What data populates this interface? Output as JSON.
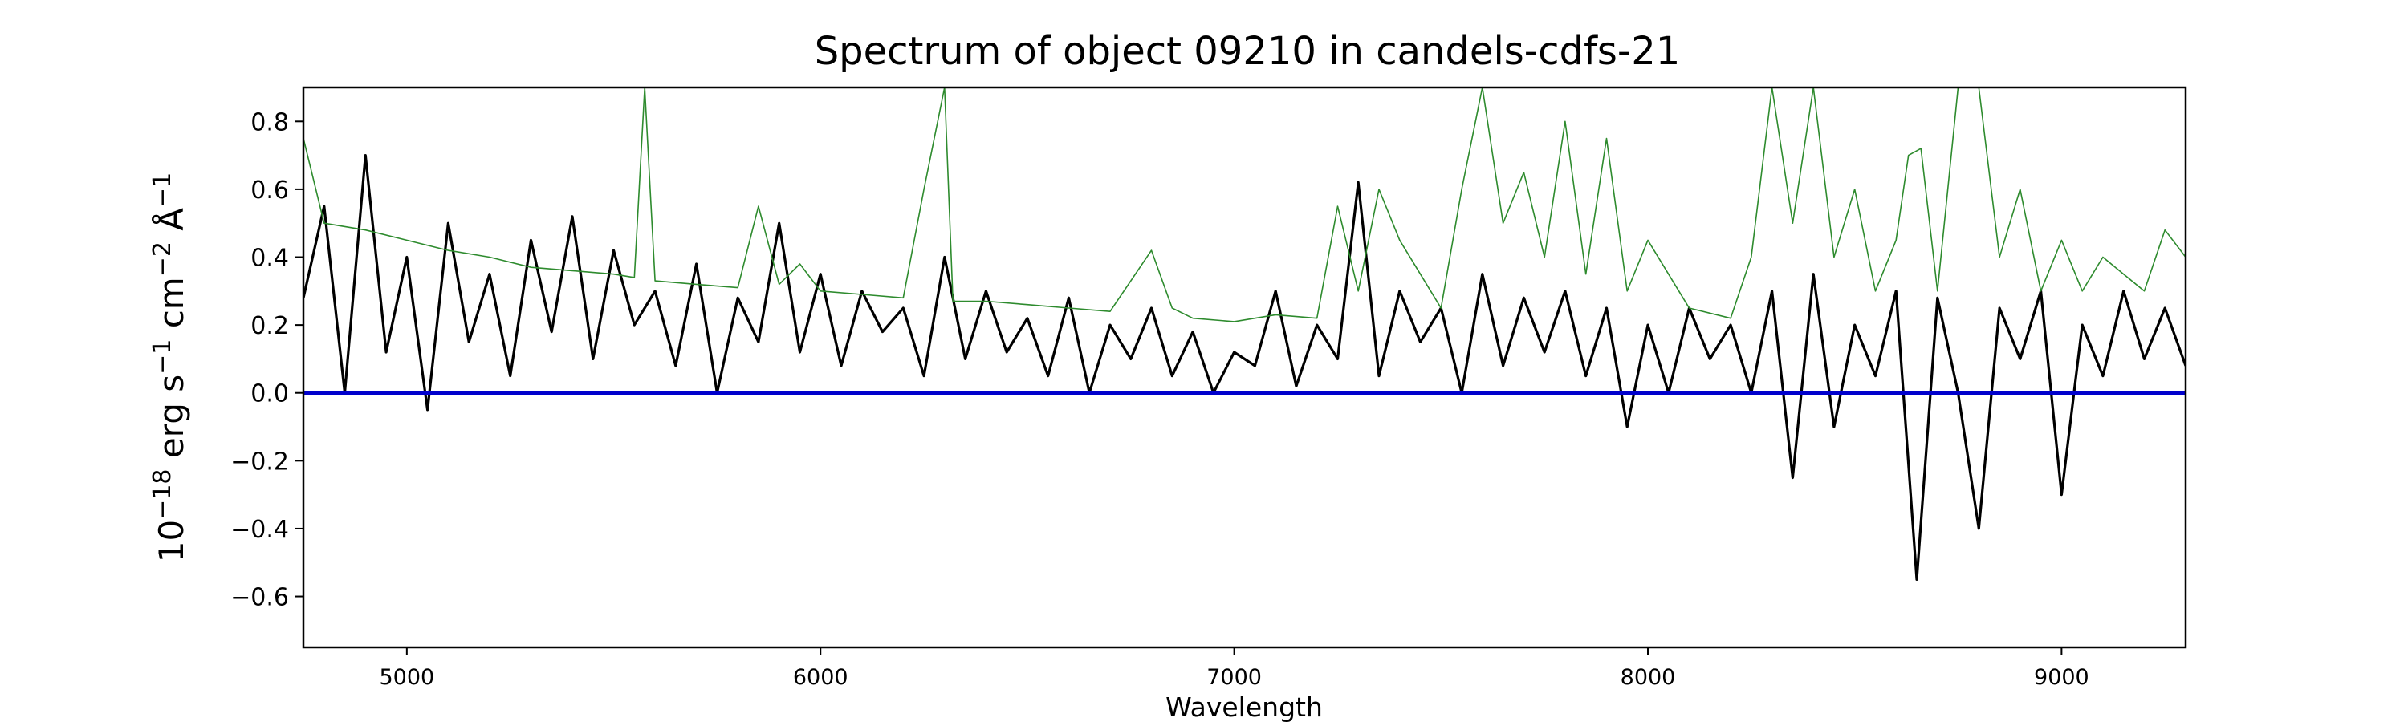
{
  "chart_data": {
    "type": "line",
    "title": "Spectrum of object 09210 in candels-cdfs-21",
    "xlabel": "Wavelength",
    "ylabel": {
      "base": "10",
      "exp1": "−18",
      "unit1": " erg s",
      "exp2": "−1",
      "unit2": " cm",
      "exp3": "−2",
      "unit3": " Å",
      "exp4": "−1"
    },
    "xlim": [
      4750,
      9300
    ],
    "ylim": [
      -0.75,
      0.9
    ],
    "x_ticks": [
      5000,
      6000,
      7000,
      8000,
      9000
    ],
    "y_ticks": [
      -0.6,
      -0.4,
      -0.2,
      0.0,
      0.2,
      0.4,
      0.6,
      0.8
    ],
    "y_tick_labels": [
      "−0.6",
      "−0.4",
      "−0.2",
      "0.0",
      "0.2",
      "0.4",
      "0.6",
      "0.8"
    ],
    "grid": false,
    "series": [
      {
        "color": "#000000",
        "x": [
          4750,
          4800,
          4850,
          4900,
          4950,
          5000,
          5050,
          5100,
          5150,
          5200,
          5250,
          5300,
          5350,
          5400,
          5450,
          5500,
          5550,
          5600,
          5650,
          5700,
          5750,
          5800,
          5850,
          5900,
          5950,
          6000,
          6050,
          6100,
          6150,
          6200,
          6250,
          6300,
          6350,
          6400,
          6450,
          6500,
          6550,
          6600,
          6650,
          6700,
          6750,
          6800,
          6850,
          6900,
          6950,
          7000,
          7050,
          7100,
          7150,
          7200,
          7250,
          7300,
          7350,
          7400,
          7450,
          7500,
          7550,
          7600,
          7650,
          7700,
          7750,
          7800,
          7850,
          7900,
          7950,
          8000,
          8050,
          8100,
          8150,
          8200,
          8250,
          8300,
          8350,
          8400,
          8450,
          8500,
          8550,
          8600,
          8650,
          8700,
          8750,
          8800,
          8850,
          8900,
          8950,
          9000,
          9050,
          9100,
          9150,
          9200,
          9250,
          9300
        ],
        "y": [
          0.28,
          0.55,
          0.0,
          0.7,
          0.12,
          0.4,
          -0.05,
          0.5,
          0.15,
          0.35,
          0.05,
          0.45,
          0.18,
          0.52,
          0.1,
          0.42,
          0.2,
          0.3,
          0.08,
          0.38,
          0.0,
          0.28,
          0.15,
          0.5,
          0.12,
          0.35,
          0.08,
          0.3,
          0.18,
          0.25,
          0.05,
          0.4,
          0.1,
          0.3,
          0.12,
          0.22,
          0.05,
          0.28,
          0.0,
          0.2,
          0.1,
          0.25,
          0.05,
          0.18,
          0.0,
          0.12,
          0.08,
          0.3,
          0.02,
          0.2,
          0.1,
          0.62,
          0.05,
          0.3,
          0.15,
          0.25,
          0.0,
          0.35,
          0.08,
          0.28,
          0.12,
          0.3,
          0.05,
          0.25,
          -0.1,
          0.2,
          0.0,
          0.25,
          0.1,
          0.2,
          0.0,
          0.3,
          -0.25,
          0.35,
          -0.1,
          0.2,
          0.05,
          0.3,
          -0.55,
          0.28,
          0.0,
          -0.4,
          0.25,
          0.1,
          0.3,
          -0.3,
          0.2,
          0.05,
          0.3,
          0.1,
          0.25,
          0.08
        ]
      },
      {
        "color": "#2e8b2e",
        "x": [
          4750,
          4800,
          4900,
          5000,
          5100,
          5200,
          5300,
          5400,
          5500,
          5550,
          5575,
          5600,
          5700,
          5800,
          5850,
          5900,
          5950,
          6000,
          6100,
          6200,
          6250,
          6300,
          6320,
          6400,
          6500,
          6600,
          6700,
          6800,
          6850,
          6900,
          7000,
          7100,
          7200,
          7250,
          7300,
          7350,
          7400,
          7500,
          7550,
          7600,
          7650,
          7700,
          7750,
          7800,
          7850,
          7900,
          7950,
          8000,
          8100,
          8200,
          8250,
          8300,
          8350,
          8400,
          8450,
          8500,
          8550,
          8600,
          8630,
          8660,
          8700,
          8750,
          8800,
          8850,
          8900,
          8950,
          9000,
          9050,
          9100,
          9150,
          9200,
          9250,
          9300
        ],
        "y": [
          0.75,
          0.5,
          0.48,
          0.45,
          0.42,
          0.4,
          0.37,
          0.36,
          0.35,
          0.34,
          0.9,
          0.33,
          0.32,
          0.31,
          0.55,
          0.32,
          0.38,
          0.3,
          0.29,
          0.28,
          0.6,
          0.9,
          0.27,
          0.27,
          0.26,
          0.25,
          0.24,
          0.42,
          0.25,
          0.22,
          0.21,
          0.23,
          0.22,
          0.55,
          0.3,
          0.6,
          0.45,
          0.25,
          0.6,
          0.9,
          0.5,
          0.65,
          0.4,
          0.8,
          0.35,
          0.75,
          0.3,
          0.45,
          0.25,
          0.22,
          0.4,
          0.9,
          0.5,
          0.9,
          0.4,
          0.6,
          0.3,
          0.45,
          0.7,
          0.72,
          0.3,
          0.9,
          0.9,
          0.4,
          0.6,
          0.3,
          0.45,
          0.3,
          0.4,
          0.35,
          0.3,
          0.48,
          0.4
        ]
      },
      {
        "color": "#0000cc",
        "x": [
          4750,
          9300
        ],
        "y": [
          0.0,
          0.0
        ]
      }
    ]
  }
}
